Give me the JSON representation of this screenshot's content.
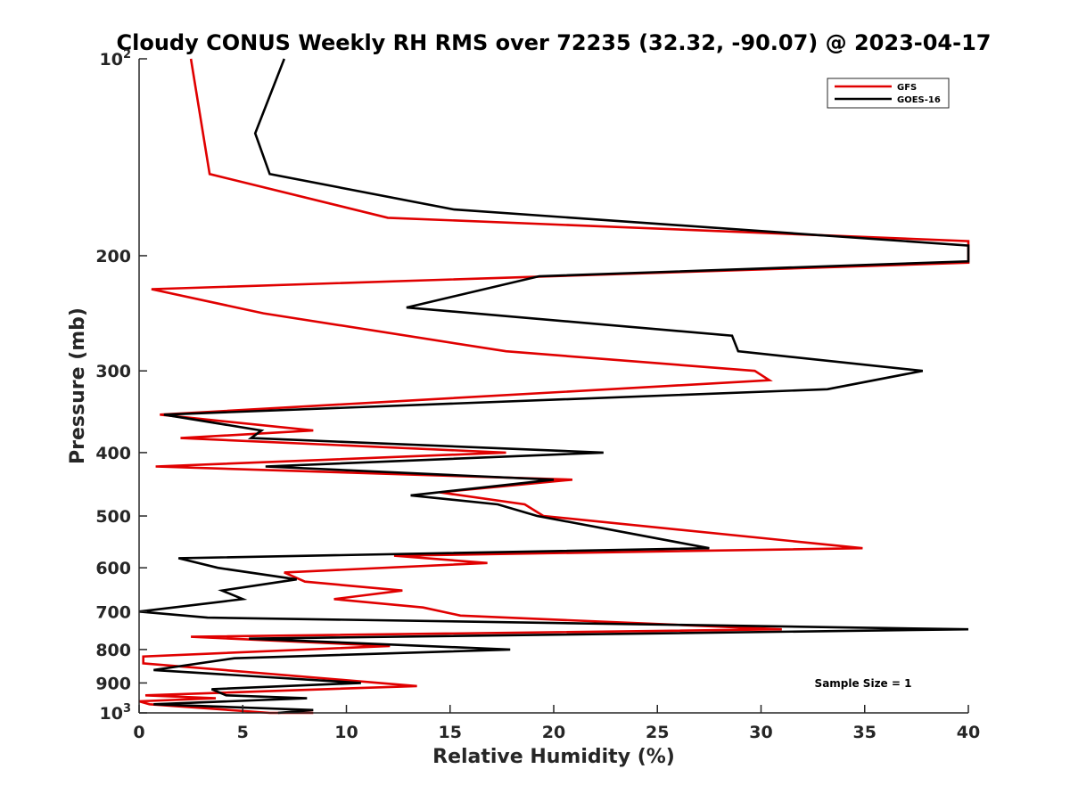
{
  "chart_data": {
    "type": "line",
    "title": "Cloudy CONUS Weekly RH RMS over 72235 (32.32, -90.07) @ 2023-04-17",
    "xlabel": "Relative Humidity (%)",
    "ylabel": "Pressure (mb)",
    "xlim": [
      0,
      40
    ],
    "ylim": [
      100,
      1000
    ],
    "yscale": "log",
    "y_reversed": true,
    "xticks": [
      0,
      5,
      10,
      15,
      20,
      25,
      30,
      35,
      40
    ],
    "yticks": [
      {
        "value": 100,
        "base": "10",
        "exp": "2",
        "text": ""
      },
      {
        "value": 200,
        "text": "200"
      },
      {
        "value": 300,
        "text": "300"
      },
      {
        "value": 400,
        "text": "400"
      },
      {
        "value": 500,
        "text": "500"
      },
      {
        "value": 600,
        "text": "600"
      },
      {
        "value": 700,
        "text": "700"
      },
      {
        "value": 800,
        "text": "800"
      },
      {
        "value": 900,
        "text": "900"
      },
      {
        "value": 1000,
        "base": "10",
        "exp": "3",
        "text": ""
      }
    ],
    "legend_position": "top-right",
    "annotation": "Sample Size = 1",
    "series": [
      {
        "name": "GFS",
        "color": "#e00000",
        "points": [
          [
            2.5,
            100
          ],
          [
            3.4,
            150
          ],
          [
            12,
            175
          ],
          [
            40,
            190
          ],
          [
            40,
            205
          ],
          [
            0.6,
            225
          ],
          [
            6,
            245
          ],
          [
            17.7,
            280
          ],
          [
            29.7,
            300
          ],
          [
            30.4,
            310
          ],
          [
            1,
            350
          ],
          [
            8.4,
            370
          ],
          [
            2,
            380
          ],
          [
            17.7,
            400
          ],
          [
            0.8,
            420
          ],
          [
            20.9,
            440
          ],
          [
            14.5,
            460
          ],
          [
            18.6,
            480
          ],
          [
            19.5,
            500
          ],
          [
            34.9,
            560
          ],
          [
            12.3,
            575
          ],
          [
            16.8,
            590
          ],
          [
            7,
            610
          ],
          [
            8,
            630
          ],
          [
            12.7,
            650
          ],
          [
            9.4,
            670
          ],
          [
            13.7,
            690
          ],
          [
            15.5,
            710
          ],
          [
            31,
            745
          ],
          [
            2.5,
            765
          ],
          [
            12.1,
            790
          ],
          [
            0.2,
            820
          ],
          [
            0.2,
            840
          ],
          [
            13.4,
            910
          ],
          [
            0.3,
            940
          ],
          [
            3.7,
            950
          ],
          [
            0,
            960
          ],
          [
            0.5,
            970
          ],
          [
            6.3,
            1000
          ],
          [
            8.4,
            1000
          ]
        ]
      },
      {
        "name": "GOES-16",
        "color": "#000000",
        "points": [
          [
            7,
            100
          ],
          [
            5.6,
            130
          ],
          [
            6.3,
            150
          ],
          [
            15.2,
            170
          ],
          [
            40,
            193
          ],
          [
            40,
            204
          ],
          [
            19.3,
            215
          ],
          [
            12.9,
            240
          ],
          [
            28.6,
            265
          ],
          [
            28.9,
            280
          ],
          [
            37.8,
            300
          ],
          [
            33.2,
            320
          ],
          [
            1.2,
            350
          ],
          [
            5.9,
            370
          ],
          [
            5.4,
            380
          ],
          [
            22.4,
            400
          ],
          [
            6.1,
            420
          ],
          [
            20,
            440
          ],
          [
            13.1,
            465
          ],
          [
            17.3,
            480
          ],
          [
            19.2,
            500
          ],
          [
            27.5,
            560
          ],
          [
            1.9,
            580
          ],
          [
            3.8,
            600
          ],
          [
            7.6,
            625
          ],
          [
            4,
            650
          ],
          [
            5,
            670
          ],
          [
            0,
            700
          ],
          [
            3.3,
            715
          ],
          [
            40,
            745
          ],
          [
            5.3,
            770
          ],
          [
            17.9,
            800
          ],
          [
            4.6,
            825
          ],
          [
            0.7,
            860
          ],
          [
            10.7,
            900
          ],
          [
            3.5,
            920
          ],
          [
            4.2,
            940
          ],
          [
            8.1,
            950
          ],
          [
            0.7,
            970
          ],
          [
            8.4,
            990
          ],
          [
            6.7,
            1000
          ]
        ]
      }
    ]
  }
}
